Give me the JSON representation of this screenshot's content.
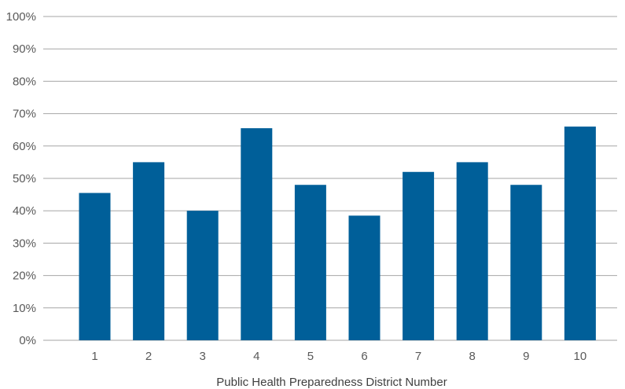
{
  "chart_data": {
    "type": "bar",
    "title": "",
    "xlabel": "Public Health Preparedness District Number",
    "ylabel": "",
    "categories": [
      "1",
      "2",
      "3",
      "4",
      "5",
      "6",
      "7",
      "8",
      "9",
      "10"
    ],
    "values": [
      45.5,
      55,
      40,
      65.5,
      48,
      38.5,
      52,
      55,
      48,
      66
    ],
    "ylim": [
      0,
      100
    ],
    "yticks": [
      0,
      10,
      20,
      30,
      40,
      50,
      60,
      70,
      80,
      90,
      100
    ],
    "ytick_labels": [
      "0%",
      "10%",
      "20%",
      "30%",
      "40%",
      "50%",
      "60%",
      "70%",
      "80%",
      "90%",
      "100%"
    ],
    "grid": true,
    "legend": "none",
    "bar_color": "#005f99",
    "grid_color": "#a6a6a6"
  }
}
